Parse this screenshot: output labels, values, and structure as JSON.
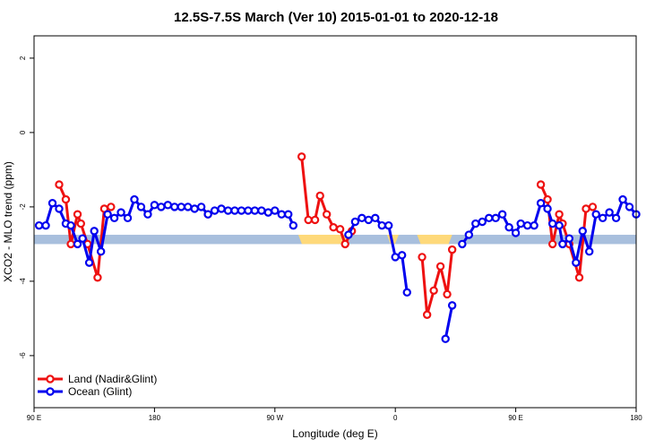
{
  "chart_data": {
    "type": "line",
    "title": "12.5S-7.5S March (Ver 10)   2015-01-01 to 2020-12-18",
    "xlabel": "Longitude (deg E)",
    "ylabel": "XCO2 - MLO trend (ppm)",
    "xlim": [
      90,
      450
    ],
    "ylim": [
      -7.4,
      2.6
    ],
    "x_ticks": [
      {
        "value": 90,
        "label": "90 E"
      },
      {
        "value": 162,
        "label": "180"
      },
      {
        "value": 234,
        "label": "90 W"
      },
      {
        "value": 306,
        "label": "0"
      },
      {
        "value": 378,
        "label": "90 E"
      },
      {
        "value": 450,
        "label": "180"
      }
    ],
    "y_ticks": [
      {
        "value": 2,
        "label": "2"
      },
      {
        "value": 0,
        "label": "0"
      },
      {
        "value": -2,
        "label": "-2"
      },
      {
        "value": -4,
        "label": "-4"
      },
      {
        "value": -6,
        "label": "-6"
      }
    ],
    "land_mask": {
      "y_range": [
        -3.0,
        -2.75
      ],
      "ocean_color": "#a8bfdd",
      "land_color": "#fed97a",
      "land_segments": [
        [
          248,
          278
        ],
        [
          303,
          306
        ],
        [
          301,
          308
        ],
        [
          319,
          340
        ]
      ]
    },
    "legend_position": "bottom-left",
    "series": [
      {
        "name": "Land (Nadir&Glint)",
        "color": "#ee1111",
        "segments": [
          [
            [
              105,
              -1.4
            ],
            [
              109,
              -1.8
            ],
            [
              112,
              -3.0
            ],
            [
              116,
              -2.2
            ],
            [
              118,
              -2.45
            ],
            [
              122,
              -3.0
            ],
            [
              128,
              -3.9
            ],
            [
              132,
              -2.05
            ],
            [
              136,
              -2.0
            ]
          ],
          [
            [
              194,
              -2.2
            ]
          ],
          [
            [
              250,
              -0.65
            ],
            [
              254,
              -2.35
            ],
            [
              258,
              -2.35
            ],
            [
              261,
              -1.7
            ],
            [
              265,
              -2.2
            ],
            [
              269,
              -2.55
            ],
            [
              273,
              -2.6
            ],
            [
              276,
              -3.0
            ],
            [
              280,
              -2.65
            ]
          ],
          [
            [
              322,
              -3.35
            ],
            [
              325,
              -4.9
            ],
            [
              329,
              -4.25
            ],
            [
              333,
              -3.6
            ],
            [
              337,
              -4.35
            ],
            [
              340,
              -3.15
            ]
          ],
          [
            [
              393,
              -1.4
            ],
            [
              397,
              -1.8
            ],
            [
              400,
              -3.0
            ],
            [
              404,
              -2.2
            ],
            [
              406,
              -2.45
            ],
            [
              410,
              -3.0
            ],
            [
              416,
              -3.9
            ],
            [
              420,
              -2.05
            ],
            [
              424,
              -2.0
            ]
          ]
        ]
      },
      {
        "name": "Ocean (Glint)",
        "color": "#0000ee",
        "segments": [
          [
            [
              93,
              -2.5
            ],
            [
              97,
              -2.5
            ],
            [
              101,
              -1.9
            ],
            [
              105,
              -2.05
            ],
            [
              109,
              -2.45
            ],
            [
              112,
              -2.5
            ],
            [
              116,
              -3.0
            ],
            [
              119,
              -2.85
            ],
            [
              123,
              -3.5
            ],
            [
              126,
              -2.65
            ],
            [
              130,
              -3.2
            ],
            [
              134,
              -2.2
            ],
            [
              138,
              -2.3
            ],
            [
              142,
              -2.15
            ],
            [
              146,
              -2.3
            ],
            [
              150,
              -1.8
            ],
            [
              154,
              -2.0
            ],
            [
              158,
              -2.2
            ],
            [
              162,
              -1.95
            ],
            [
              166,
              -2.0
            ],
            [
              170,
              -1.95
            ],
            [
              174,
              -2.0
            ],
            [
              178,
              -2.0
            ],
            [
              182,
              -2.0
            ],
            [
              186,
              -2.05
            ],
            [
              190,
              -2.0
            ],
            [
              194,
              -2.2
            ],
            [
              198,
              -2.1
            ],
            [
              202,
              -2.05
            ],
            [
              206,
              -2.1
            ],
            [
              210,
              -2.1
            ],
            [
              214,
              -2.1
            ],
            [
              218,
              -2.1
            ],
            [
              222,
              -2.1
            ],
            [
              226,
              -2.1
            ],
            [
              230,
              -2.15
            ],
            [
              234,
              -2.1
            ],
            [
              238,
              -2.2
            ],
            [
              242,
              -2.2
            ],
            [
              245,
              -2.5
            ]
          ],
          [
            [
              278,
              -2.75
            ],
            [
              282,
              -2.4
            ],
            [
              286,
              -2.3
            ],
            [
              290,
              -2.35
            ],
            [
              294,
              -2.3
            ],
            [
              298,
              -2.5
            ],
            [
              302,
              -2.5
            ],
            [
              306,
              -3.35
            ],
            [
              310,
              -3.3
            ],
            [
              313,
              -4.3
            ]
          ],
          [
            [
              336,
              -5.55
            ],
            [
              340,
              -4.65
            ]
          ],
          [
            [
              346,
              -3.0
            ],
            [
              350,
              -2.75
            ],
            [
              354,
              -2.45
            ],
            [
              358,
              -2.4
            ],
            [
              362,
              -2.3
            ],
            [
              366,
              -2.3
            ],
            [
              370,
              -2.2
            ],
            [
              374,
              -2.55
            ],
            [
              378,
              -2.7
            ],
            [
              381,
              -2.45
            ],
            [
              385,
              -2.5
            ],
            [
              389,
              -2.5
            ],
            [
              393,
              -1.9
            ],
            [
              397,
              -2.05
            ],
            [
              400,
              -2.45
            ],
            [
              404,
              -2.5
            ],
            [
              406,
              -3.0
            ],
            [
              410,
              -2.85
            ],
            [
              414,
              -3.5
            ],
            [
              418,
              -2.65
            ],
            [
              422,
              -3.2
            ],
            [
              426,
              -2.2
            ],
            [
              430,
              -2.3
            ],
            [
              434,
              -2.15
            ],
            [
              438,
              -2.3
            ],
            [
              442,
              -1.8
            ],
            [
              446,
              -2.0
            ],
            [
              450,
              -2.2
            ]
          ]
        ]
      }
    ]
  }
}
